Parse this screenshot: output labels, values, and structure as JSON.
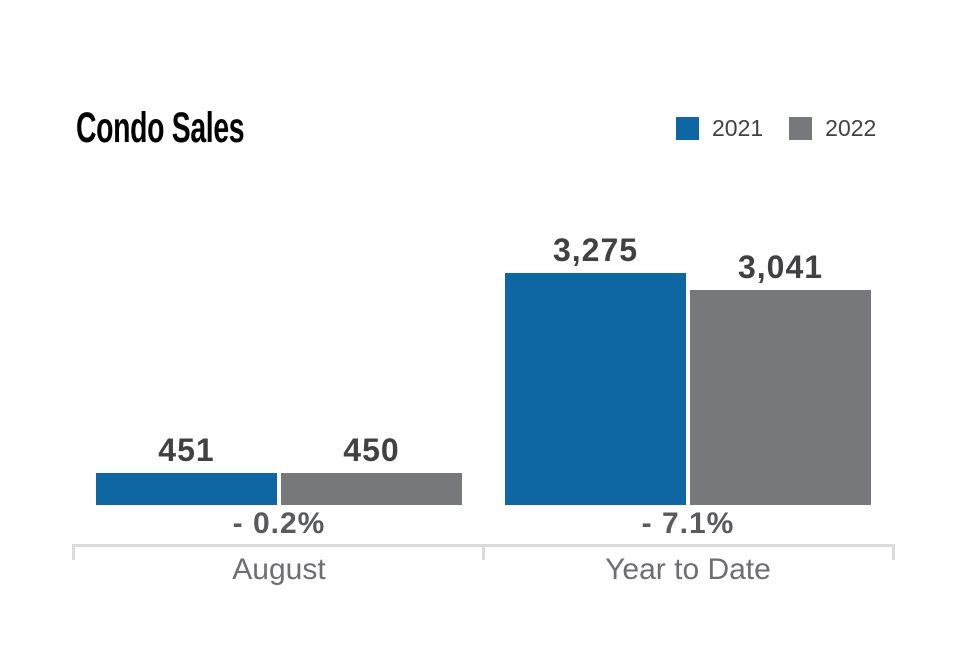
{
  "chart_data": {
    "type": "bar",
    "title": "Condo Sales",
    "categories": [
      "August",
      "Year to Date"
    ],
    "series": [
      {
        "name": "2021",
        "color": "#0E67A2",
        "values": [
          451,
          3275
        ],
        "labels": [
          "451",
          "3,275"
        ]
      },
      {
        "name": "2022",
        "color": "#77787B",
        "values": [
          450,
          3041
        ],
        "labels": [
          "450",
          "3,041"
        ]
      }
    ],
    "pct_change": [
      "- 0.2%",
      "- 7.1%"
    ],
    "ylim": [
      0,
      3275
    ],
    "grid": false,
    "legend_position": "top-right",
    "colors": {
      "series_2021": "#0E67A2",
      "series_2022": "#77787B",
      "title": "#000000",
      "value_label": "#414042",
      "pct_label": "#595A5E",
      "category_label": "#6D6E71",
      "axis_line": "#DADBDC",
      "background": "#FFFFFF"
    }
  }
}
